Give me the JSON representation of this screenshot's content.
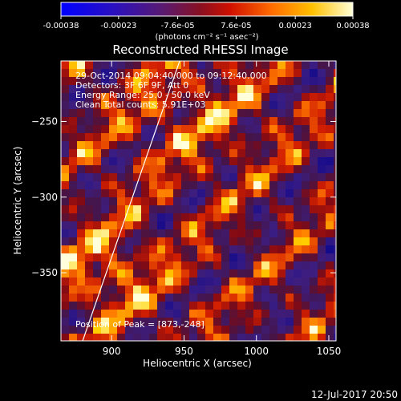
{
  "chart_data": {
    "type": "heatmap",
    "title": "Reconstructed RHESSI Image",
    "xlabel": "Heliocentric X (arcsec)",
    "ylabel": "Heliocentric Y (arcsec)",
    "xlim": [
      865,
      1055
    ],
    "ylim": [
      -395,
      -210
    ],
    "x_ticks": [
      900,
      950,
      1000,
      1050
    ],
    "y_ticks": [
      -250,
      -300,
      -350
    ],
    "colorbar": {
      "range": [
        -0.00038,
        0.00038
      ],
      "tick_values": [
        -0.00038,
        -0.00023,
        -7.6e-05,
        7.6e-05,
        0.00023,
        0.00038
      ],
      "tick_labels": [
        "-0.00038",
        "-0.00023",
        "-7.6e-05",
        "7.6e-05",
        "0.00023",
        "0.00038"
      ],
      "unit_label": "(photons cm⁻² s⁻¹ asec⁻²)",
      "colors": [
        "#0000ff",
        "#3a1a8c",
        "#6a1a5a",
        "#c01010",
        "#ff6a00",
        "#ffd000",
        "#ffffc8"
      ]
    },
    "annotations": [
      "29-Oct-2014 09:04:40.000 to 09:12:40.000",
      "Detectors: 3F 6F 9F, Att 0",
      "Energy Range: 25.0 - 50.0 keV",
      "Clean    Total counts: 5.91E+03"
    ],
    "peak_label": "Position of Peak = [873,-248]",
    "timestamp": "12-Jul-2017 20:50",
    "limb_line": [
      [
        880,
        -395
      ],
      [
        947,
        -210
      ]
    ],
    "grid": false
  },
  "colors": {
    "background": "#000000",
    "text": "#ffffff"
  }
}
